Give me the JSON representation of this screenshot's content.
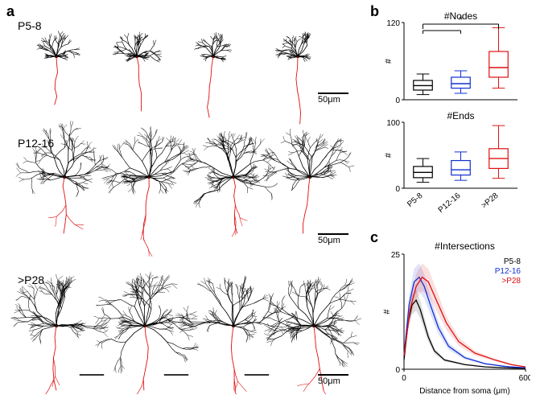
{
  "labels": {
    "a": "a",
    "b": "b",
    "c": "c"
  },
  "groups": {
    "g1": "P5-8",
    "g2": "P12-16",
    "g3": ">P28"
  },
  "scalebar": "50μm",
  "panelB": {
    "nodes": {
      "title": "#Nodes",
      "ylabel": "#",
      "ylim": [
        0,
        120
      ],
      "yticks": [
        0,
        120
      ],
      "sig_label": "*",
      "boxes": [
        {
          "x": 0,
          "q1": 15,
          "med": 22,
          "q3": 30,
          "wlo": 8,
          "whi": 40,
          "color": "#000000"
        },
        {
          "x": 1,
          "q1": 18,
          "med": 25,
          "q3": 35,
          "wlo": 10,
          "whi": 45,
          "color": "#1030d0"
        },
        {
          "x": 2,
          "q1": 35,
          "med": 50,
          "q3": 75,
          "wlo": 18,
          "whi": 112,
          "color": "#e01010"
        }
      ]
    },
    "ends": {
      "title": "#Ends",
      "ylabel": "#",
      "ylim": [
        0,
        100
      ],
      "yticks": [
        0,
        100
      ],
      "boxes": [
        {
          "x": 0,
          "q1": 16,
          "med": 24,
          "q3": 33,
          "wlo": 9,
          "whi": 45,
          "color": "#000000"
        },
        {
          "x": 1,
          "q1": 20,
          "med": 28,
          "q3": 42,
          "wlo": 12,
          "whi": 55,
          "color": "#1030d0"
        },
        {
          "x": 2,
          "q1": 30,
          "med": 45,
          "q3": 60,
          "wlo": 15,
          "whi": 95,
          "color": "#e01010"
        }
      ]
    },
    "xticks": [
      "P5-8",
      "P12-16",
      ">P28"
    ]
  },
  "panelC": {
    "title": "#Intersections",
    "ylabel": "#",
    "xlabel": "Distance from soma (μm)",
    "xlim": [
      0,
      600
    ],
    "ylim": [
      0,
      25
    ],
    "xticks": [
      0,
      600
    ],
    "yticks": [
      0,
      25
    ],
    "legend": [
      {
        "label": "P5-8",
        "color": "#000000"
      },
      {
        "label": "P12-16",
        "color": "#1030d0"
      },
      {
        "label": ">P28",
        "color": "#e01010"
      }
    ],
    "series": [
      {
        "color": "#000000",
        "fill": "#00000022",
        "pts": [
          [
            0,
            2
          ],
          [
            20,
            10
          ],
          [
            40,
            14
          ],
          [
            60,
            15
          ],
          [
            80,
            13
          ],
          [
            100,
            10
          ],
          [
            120,
            7
          ],
          [
            150,
            4
          ],
          [
            200,
            2
          ],
          [
            300,
            1
          ],
          [
            400,
            0.5
          ],
          [
            500,
            0.3
          ],
          [
            600,
            0.2
          ]
        ]
      },
      {
        "color": "#1030d0",
        "fill": "#1030d022",
        "pts": [
          [
            0,
            3
          ],
          [
            25,
            14
          ],
          [
            50,
            19
          ],
          [
            75,
            20
          ],
          [
            100,
            18
          ],
          [
            130,
            14
          ],
          [
            170,
            9
          ],
          [
            220,
            5
          ],
          [
            300,
            2.5
          ],
          [
            400,
            1.2
          ],
          [
            500,
            0.6
          ],
          [
            600,
            0.3
          ]
        ]
      },
      {
        "color": "#e01010",
        "fill": "#e0101022",
        "pts": [
          [
            0,
            3
          ],
          [
            30,
            13
          ],
          [
            60,
            18
          ],
          [
            90,
            20
          ],
          [
            120,
            19
          ],
          [
            160,
            15
          ],
          [
            210,
            10
          ],
          [
            270,
            6
          ],
          [
            350,
            3.5
          ],
          [
            450,
            2
          ],
          [
            530,
            1
          ],
          [
            600,
            0.5
          ]
        ]
      }
    ]
  },
  "neurons": {
    "dendrite_color": "#000000",
    "axon_color": "#e01010"
  }
}
